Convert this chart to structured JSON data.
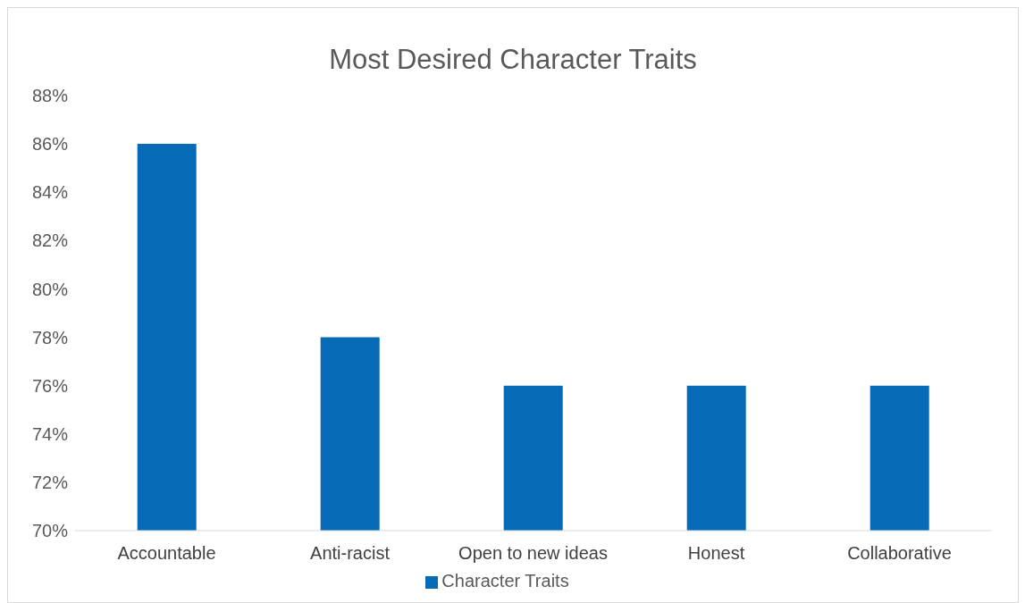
{
  "chart_data": {
    "type": "bar",
    "title": "Most Desired Character Traits",
    "categories": [
      "Accountable",
      "Anti-racist",
      "Open to new ideas",
      "Honest",
      "Collaborative"
    ],
    "series": [
      {
        "name": "Character Traits",
        "color": "#066bb6",
        "values": [
          86,
          78,
          76,
          76,
          76
        ]
      }
    ],
    "ylim": [
      70,
      88
    ],
    "yticks": [
      {
        "value": 70,
        "label": "70%"
      },
      {
        "value": 72,
        "label": "72%"
      },
      {
        "value": 74,
        "label": "74%"
      },
      {
        "value": 76,
        "label": "76%"
      },
      {
        "value": 78,
        "label": "78%"
      },
      {
        "value": 80,
        "label": "80%"
      },
      {
        "value": 82,
        "label": "82%"
      },
      {
        "value": 84,
        "label": "84%"
      },
      {
        "value": 86,
        "label": "86%"
      },
      {
        "value": 88,
        "label": "88%"
      }
    ],
    "grid": false,
    "legend": "bottom"
  }
}
